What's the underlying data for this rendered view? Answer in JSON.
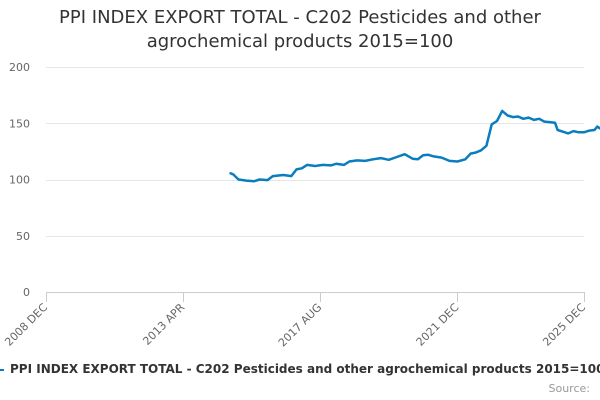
{
  "title": {
    "line1": "PPI INDEX EXPORT TOTAL - C202 Pesticides and other",
    "line2": "agrochemical products 2015=100"
  },
  "legend": {
    "label": "PPI INDEX EXPORT TOTAL - C202 Pesticides and other agrochemical products 2015=100"
  },
  "credits": "Source:",
  "colors": {
    "series": "#0a7dbf"
  },
  "chart_data": {
    "type": "line",
    "title": "PPI INDEX EXPORT TOTAL - C202 Pesticides and other agrochemical products 2015=100",
    "xlabel": "",
    "ylabel": "",
    "ylim": [
      0,
      200
    ],
    "yticks": [
      0,
      50,
      100,
      150,
      200
    ],
    "xlim": [
      "2008-12",
      "2025-12"
    ],
    "xticks": [
      {
        "date": "2008-12",
        "label": "2008 DEC"
      },
      {
        "date": "2013-04",
        "label": "2013 APR"
      },
      {
        "date": "2017-08",
        "label": "2017 AUG"
      },
      {
        "date": "2021-12",
        "label": "2021 DEC"
      },
      {
        "date": "2025-12",
        "label": "2025 DEC"
      }
    ],
    "grid": true,
    "legend_position": "bottom",
    "series": [
      {
        "name": "PPI INDEX EXPORT TOTAL - C202 Pesticides and other agrochemical products 2015=100",
        "points": [
          [
            "2014-10",
            105.5
          ],
          [
            "2014-11",
            104.5
          ],
          [
            "2015-01",
            100.0
          ],
          [
            "2015-04",
            99.0
          ],
          [
            "2015-07",
            98.5
          ],
          [
            "2015-09",
            100.0
          ],
          [
            "2015-12",
            99.5
          ],
          [
            "2016-02",
            103.0
          ],
          [
            "2016-06",
            104.0
          ],
          [
            "2016-09",
            103.0
          ],
          [
            "2016-11",
            109.0
          ],
          [
            "2017-01",
            110.0
          ],
          [
            "2017-03",
            113.0
          ],
          [
            "2017-06",
            112.0
          ],
          [
            "2017-09",
            113.0
          ],
          [
            "2017-12",
            112.5
          ],
          [
            "2018-02",
            114.0
          ],
          [
            "2018-05",
            113.0
          ],
          [
            "2018-07",
            116.0
          ],
          [
            "2018-10",
            117.0
          ],
          [
            "2019-01",
            116.5
          ],
          [
            "2019-04",
            118.0
          ],
          [
            "2019-07",
            119.0
          ],
          [
            "2019-10",
            117.5
          ],
          [
            "2020-01",
            120.0
          ],
          [
            "2020-04",
            122.5
          ],
          [
            "2020-07",
            118.5
          ],
          [
            "2020-09",
            118.0
          ],
          [
            "2020-11",
            121.5
          ],
          [
            "2021-01",
            122.0
          ],
          [
            "2021-03",
            120.5
          ],
          [
            "2021-06",
            119.5
          ],
          [
            "2021-09",
            116.5
          ],
          [
            "2021-12",
            116.0
          ],
          [
            "2022-03",
            118.0
          ],
          [
            "2022-05",
            123.0
          ],
          [
            "2022-07",
            124.0
          ],
          [
            "2022-09",
            126.0
          ],
          [
            "2022-11",
            130.0
          ],
          [
            "2023-01",
            149.0
          ],
          [
            "2023-03",
            152.0
          ],
          [
            "2023-05",
            161.0
          ],
          [
            "2023-07",
            157.0
          ],
          [
            "2023-09",
            155.5
          ],
          [
            "2023-11",
            156.0
          ],
          [
            "2024-01",
            154.0
          ],
          [
            "2024-03",
            155.0
          ],
          [
            "2024-05",
            153.0
          ],
          [
            "2024-07",
            154.0
          ],
          [
            "2024-09",
            151.5
          ],
          [
            "2024-11",
            151.0
          ],
          [
            "2025-01",
            150.5
          ],
          [
            "2025-02",
            144.0
          ],
          [
            "2025-04",
            142.5
          ],
          [
            "2025-06",
            141.0
          ],
          [
            "2025-08",
            143.0
          ],
          [
            "2025-10",
            142.0
          ],
          [
            "2025-12",
            142.0
          ],
          [
            "2026-02",
            143.5
          ],
          [
            "2026-04",
            144.0
          ],
          [
            "2026-05",
            147.0
          ],
          [
            "2026-06",
            145.5
          ]
        ]
      }
    ]
  }
}
